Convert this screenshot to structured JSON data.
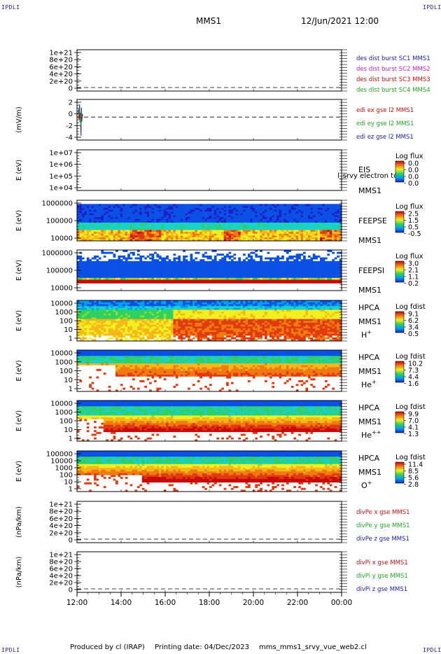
{
  "corner_tag": "IPDLI",
  "header": {
    "mission": "MMS1",
    "datetime": "12/Jun/2021 12:00"
  },
  "footer": {
    "produced": "Produced by cl (IRAP)",
    "printing": "Printing date: 04/Dec/2023",
    "script": "mms_mms1_srvy_vue_web2.cl"
  },
  "chart_data": {
    "type": "heatmap",
    "x_ticks": [
      "12:00",
      "14:00",
      "16:00",
      "18:00",
      "20:00",
      "22:00",
      "00:00"
    ],
    "x_range_hours": [
      0,
      12
    ],
    "panels": [
      {
        "id": "des-dist",
        "type": "line",
        "ylabel": "",
        "yticks": [
          "1e+21",
          "8e+20",
          "6e+20",
          "4e+20",
          "2e+20",
          "0"
        ],
        "zero_line": true,
        "legend": [
          {
            "text": "des dist burst SC1 MMS1",
            "color": "#1a1ab4"
          },
          {
            "text": "des dist burst SC2 MMS2",
            "color": "#cc22cc"
          },
          {
            "text": "des dist burst SC3 MMS3",
            "color": "#cc1111"
          },
          {
            "text": "des dist burst SC4 MMS4",
            "color": "#22aa22"
          }
        ]
      },
      {
        "id": "edi-e",
        "type": "line",
        "ylabel": "(mV/m)",
        "yticks": [
          "2",
          "0",
          "-2",
          "-4"
        ],
        "ylim": [
          -4.3,
          3.3
        ],
        "zero_line": true,
        "series_data": [
          {
            "color": "#1a1ab4",
            "x": [
              0.05,
              0.08,
              0.1,
              0.12,
              0.14,
              0.16,
              0.18,
              0.2,
              0.22,
              0.24,
              0.26
            ],
            "y": [
              0.5,
              1.5,
              -0.5,
              2.4,
              -1.0,
              0.8,
              -3.5,
              1.8,
              -0.8,
              0.6,
              0.2
            ]
          },
          {
            "color": "#22aa22",
            "x": [
              0.06,
              0.09,
              0.11,
              0.13,
              0.15,
              0.17,
              0.19,
              0.21
            ],
            "y": [
              -0.3,
              0.8,
              1.4,
              -0.9,
              0.5,
              -1.6,
              1.0,
              0.1
            ]
          },
          {
            "color": "#cc1111",
            "x": [
              0.07,
              0.1,
              0.12,
              0.15,
              0.18
            ],
            "y": [
              0.3,
              -0.4,
              0.9,
              -0.2,
              0.1
            ]
          }
        ],
        "legend": [
          {
            "text": "edi ex gse l2 MMS1",
            "color": "#cc1111"
          },
          {
            "text": "edi ey gse l2 MMS1",
            "color": "#22aa22"
          },
          {
            "text": "edi ez gse l2 MMS1",
            "color": "#1a1ab4"
          }
        ]
      },
      {
        "id": "eis",
        "type": "heatmap",
        "ylabel": "E (eV)",
        "yticks": [
          "1e+07",
          "1e+06",
          "1e+05",
          "1e+04"
        ],
        "labels": [
          "EIS",
          "MMS1"
        ],
        "overlay_text": "l_srvy electron to",
        "colorbar": {
          "title": "Log flux",
          "ticks": [
            "0.0",
            "0.0",
            "0.0",
            "0.0"
          ]
        },
        "pattern": "empty"
      },
      {
        "id": "feeps-e",
        "type": "heatmap",
        "ylabel": "E (eV)",
        "yticks": [
          "1000000",
          "100000",
          "10000"
        ],
        "labels": [
          "FEEPSE",
          "MMS1"
        ],
        "colorbar": {
          "title": "Log flux",
          "ticks": [
            "2.5",
            "1.5",
            "0.5",
            "-0.5"
          ]
        },
        "pattern": "feepse"
      },
      {
        "id": "feeps-i",
        "type": "heatmap",
        "ylabel": "E (eV)",
        "yticks": [
          "1000000",
          "100000",
          "10000"
        ],
        "labels": [
          "FEEPSI",
          "MMS1"
        ],
        "colorbar": {
          "title": "Log flux",
          "ticks": [
            "3.0",
            "2.1",
            "1.1",
            "0.2"
          ]
        },
        "pattern": "feepsi"
      },
      {
        "id": "hpca-h",
        "type": "heatmap",
        "ylabel": "E (eV)",
        "yticks": [
          "10000",
          "1000",
          "100",
          "10",
          "1"
        ],
        "labels": [
          "HPCA",
          "MMS1"
        ],
        "species": "H",
        "species_sup": "+",
        "colorbar": {
          "title": "Log fdist",
          "ticks": [
            "9.1",
            "6.2",
            "3.4",
            "0.5"
          ]
        },
        "pattern": "hplus"
      },
      {
        "id": "hpca-he",
        "type": "heatmap",
        "ylabel": "E (eV)",
        "yticks": [
          "10000",
          "1000",
          "100",
          "10",
          "1"
        ],
        "labels": [
          "HPCA",
          "MMS1"
        ],
        "species": "He",
        "species_sup": "+",
        "colorbar": {
          "title": "Log fdist",
          "ticks": [
            "10.2",
            "7.3",
            "4.4",
            "1.6"
          ]
        },
        "pattern": "heplus"
      },
      {
        "id": "hpca-hepp",
        "type": "heatmap",
        "ylabel": "E (eV)",
        "yticks": [
          "10000",
          "1000",
          "100",
          "10",
          "1"
        ],
        "labels": [
          "HPCA",
          "MMS1"
        ],
        "species": "He",
        "species_sup": "++",
        "colorbar": {
          "title": "Log fdist",
          "ticks": [
            "9.9",
            "7.0",
            "4.1",
            "1.3"
          ]
        },
        "pattern": "hepp"
      },
      {
        "id": "hpca-o",
        "type": "heatmap",
        "ylabel": "E (eV)",
        "yticks": [
          "100000",
          "10000",
          "1000",
          "100",
          "10",
          "1"
        ],
        "labels": [
          "HPCA",
          "MMS1"
        ],
        "species": "O",
        "species_sup": "+",
        "colorbar": {
          "title": "Log fdist",
          "ticks": [
            "11.4",
            "8.5",
            "5.6",
            "2.8"
          ]
        },
        "pattern": "oplus"
      },
      {
        "id": "divpe",
        "type": "line",
        "ylabel": "(nPa/km)",
        "yticks": [
          "1e+21",
          "8e+20",
          "6e+20",
          "4e+20",
          "2e+20",
          "0"
        ],
        "zero_line": true,
        "legend": [
          {
            "text": "divPe x gse MMS1",
            "color": "#cc1111"
          },
          {
            "text": "divPe y gse MMS1",
            "color": "#22aa22"
          },
          {
            "text": "divPe z gse MMS1",
            "color": "#1a1ab4"
          }
        ]
      },
      {
        "id": "divpi",
        "type": "line",
        "ylabel": "(nPa/km)",
        "yticks": [
          "1e+21",
          "8e+20",
          "6e+20",
          "4e+20",
          "2e+20",
          "0"
        ],
        "zero_line": true,
        "legend": [
          {
            "text": "divPi x gse MMS1",
            "color": "#cc1111"
          },
          {
            "text": "divPi y gse MMS1",
            "color": "#22aa22"
          },
          {
            "text": "divPi z gse MMS1",
            "color": "#1a1ab4"
          }
        ]
      }
    ]
  }
}
